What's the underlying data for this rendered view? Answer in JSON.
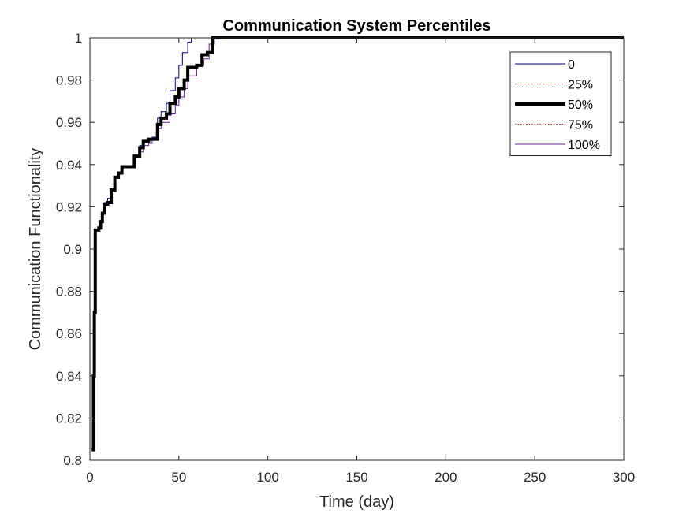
{
  "chart_data": {
    "type": "line",
    "title": "Communication System Percentiles",
    "xlabel": "Time (day)",
    "ylabel": "Communication Functionality",
    "xlim": [
      0,
      300
    ],
    "ylim": [
      0.8,
      1
    ],
    "xticks": [
      0,
      50,
      100,
      150,
      200,
      250,
      300
    ],
    "yticks": [
      0.8,
      0.82,
      0.84,
      0.86,
      0.88,
      0.9,
      0.92,
      0.94,
      0.96,
      0.98,
      1
    ],
    "xtick_labels": [
      "0",
      "50",
      "100",
      "150",
      "200",
      "250",
      "300"
    ],
    "ytick_labels": [
      "0.8",
      "0.82",
      "0.84",
      "0.86",
      "0.88",
      "0.9",
      "0.92",
      "0.94",
      "0.96",
      "0.98",
      "1"
    ],
    "grid": false,
    "legend_position": "top-right",
    "series": [
      {
        "name": "0",
        "color": "#00007f",
        "style": "solid",
        "width": "thin",
        "x": [
          1,
          2,
          2.5,
          3,
          4,
          5,
          6,
          7,
          8,
          10,
          12,
          14,
          16,
          18,
          20,
          25,
          28,
          30,
          33,
          35,
          38,
          40,
          43,
          45,
          48,
          50,
          52,
          55,
          57,
          300
        ],
        "y": [
          0.805,
          0.84,
          0.87,
          0.909,
          0.909,
          0.91,
          0.913,
          0.917,
          0.922,
          0.924,
          0.928,
          0.934,
          0.936,
          0.939,
          0.939,
          0.944,
          0.949,
          0.951,
          0.952,
          0.953,
          0.962,
          0.965,
          0.969,
          0.975,
          0.981,
          0.987,
          0.993,
          0.998,
          1.0,
          1.0
        ]
      },
      {
        "name": "25%",
        "color": "#c0392b",
        "style": "dotted",
        "width": "thin",
        "x": [
          1,
          2,
          2.5,
          3,
          4,
          5,
          6,
          7,
          8,
          10,
          12,
          14,
          16,
          18,
          20,
          25,
          28,
          30,
          33,
          35,
          38,
          40,
          43,
          45,
          48,
          50,
          53,
          55,
          60,
          63,
          66,
          69,
          300
        ],
        "y": [
          0.805,
          0.84,
          0.87,
          0.909,
          0.909,
          0.91,
          0.913,
          0.917,
          0.921,
          0.922,
          0.928,
          0.934,
          0.936,
          0.939,
          0.939,
          0.944,
          0.948,
          0.951,
          0.952,
          0.952,
          0.959,
          0.962,
          0.964,
          0.969,
          0.972,
          0.976,
          0.98,
          0.986,
          0.987,
          0.992,
          0.993,
          1.0,
          1.0
        ]
      },
      {
        "name": "50%",
        "color": "#000000",
        "style": "solid",
        "width": "thick",
        "x": [
          1,
          2,
          2.5,
          3,
          4,
          5,
          6,
          7,
          8,
          10,
          12,
          14,
          16,
          18,
          20,
          25,
          28,
          30,
          33,
          35,
          38,
          40,
          43,
          45,
          48,
          50,
          53,
          55,
          60,
          63,
          66,
          69,
          300
        ],
        "y": [
          0.805,
          0.84,
          0.87,
          0.909,
          0.909,
          0.91,
          0.913,
          0.917,
          0.921,
          0.922,
          0.928,
          0.934,
          0.936,
          0.939,
          0.939,
          0.944,
          0.948,
          0.951,
          0.952,
          0.952,
          0.959,
          0.962,
          0.964,
          0.969,
          0.972,
          0.976,
          0.98,
          0.986,
          0.987,
          0.992,
          0.993,
          1.0,
          1.0
        ]
      },
      {
        "name": "75%",
        "color": "#c0392b",
        "style": "dotted",
        "width": "thin",
        "x": [
          1,
          2,
          2.5,
          3,
          4,
          5,
          6,
          7,
          8,
          10,
          12,
          14,
          16,
          18,
          20,
          25,
          28,
          30,
          33,
          35,
          38,
          40,
          43,
          45,
          48,
          50,
          53,
          55,
          60,
          63,
          66,
          69,
          300
        ],
        "y": [
          0.805,
          0.84,
          0.87,
          0.909,
          0.909,
          0.91,
          0.913,
          0.917,
          0.921,
          0.922,
          0.928,
          0.934,
          0.936,
          0.939,
          0.939,
          0.944,
          0.948,
          0.951,
          0.952,
          0.952,
          0.959,
          0.962,
          0.964,
          0.969,
          0.972,
          0.976,
          0.98,
          0.986,
          0.987,
          0.992,
          0.993,
          1.0,
          1.0
        ]
      },
      {
        "name": "100%",
        "color": "#6a1b9a",
        "style": "solid",
        "width": "thin",
        "x": [
          1,
          2,
          2.5,
          3,
          4,
          5,
          6,
          7,
          8,
          10,
          12,
          14,
          16,
          18,
          20,
          25,
          28,
          30,
          33,
          35,
          38,
          40,
          43,
          45,
          48,
          50,
          53,
          55,
          60,
          64,
          67,
          70,
          300
        ],
        "y": [
          0.805,
          0.84,
          0.87,
          0.909,
          0.909,
          0.91,
          0.913,
          0.917,
          0.921,
          0.922,
          0.928,
          0.934,
          0.936,
          0.939,
          0.939,
          0.944,
          0.946,
          0.949,
          0.95,
          0.952,
          0.957,
          0.96,
          0.96,
          0.964,
          0.968,
          0.972,
          0.976,
          0.982,
          0.987,
          0.99,
          0.997,
          1.0,
          1.0
        ]
      }
    ]
  }
}
